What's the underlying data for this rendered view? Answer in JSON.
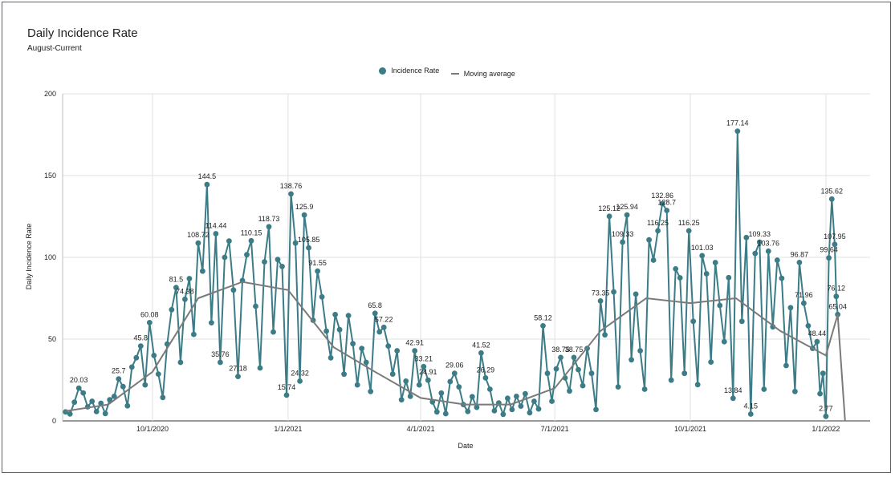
{
  "chart_data": {
    "type": "line",
    "title": "Daily Incidence Rate",
    "subtitle": "August-Current",
    "xlabel": "Date",
    "ylabel": "Daily Incidence Rate",
    "ylim": [
      0,
      200
    ],
    "yticks": [
      0,
      50,
      100,
      150,
      200
    ],
    "xlim": [
      "2020-08-01",
      "2022-01-31"
    ],
    "xticks": [
      {
        "date": "2020-10-01",
        "label": "10/1/2020"
      },
      {
        "date": "2021-01-01",
        "label": "1/1/2021"
      },
      {
        "date": "2021-04-01",
        "label": "4/1/2021"
      },
      {
        "date": "2021-07-01",
        "label": "7/1/2021"
      },
      {
        "date": "2021-10-01",
        "label": "10/1/2021"
      },
      {
        "date": "2022-01-01",
        "label": "1/1/2022"
      }
    ],
    "grid": true,
    "legend_position": "top-center",
    "series": [
      {
        "name": "Incidence Rate",
        "color": "#3b7c87",
        "marker": "circle",
        "points": [
          [
            "2020-08-03",
            5.5
          ],
          [
            "2020-08-06",
            4.2
          ],
          [
            "2020-08-09",
            11.4
          ],
          [
            "2020-08-12",
            20.03
          ],
          [
            "2020-08-15",
            17.1
          ],
          [
            "2020-08-18",
            8.6
          ],
          [
            "2020-08-21",
            12.0
          ],
          [
            "2020-08-24",
            5.7
          ],
          [
            "2020-08-27",
            10.8
          ],
          [
            "2020-08-30",
            4.5
          ],
          [
            "2020-09-02",
            12.9
          ],
          [
            "2020-09-05",
            15.0
          ],
          [
            "2020-09-08",
            25.7
          ],
          [
            "2020-09-11",
            21.0
          ],
          [
            "2020-09-14",
            9.2
          ],
          [
            "2020-09-17",
            32.9
          ],
          [
            "2020-09-20",
            38.6
          ],
          [
            "2020-09-23",
            45.8
          ],
          [
            "2020-09-26",
            22.0
          ],
          [
            "2020-09-29",
            60.08
          ],
          [
            "2020-10-02",
            40.0
          ],
          [
            "2020-10-05",
            28.61
          ],
          [
            "2020-10-08",
            14.3
          ],
          [
            "2020-10-11",
            47.0
          ],
          [
            "2020-10-14",
            68.0
          ],
          [
            "2020-10-17",
            81.5
          ],
          [
            "2020-10-20",
            35.8
          ],
          [
            "2020-10-23",
            74.38
          ],
          [
            "2020-10-26",
            87.0
          ],
          [
            "2020-10-29",
            52.9
          ],
          [
            "2020-11-01",
            108.72
          ],
          [
            "2020-11-04",
            91.55
          ],
          [
            "2020-11-07",
            144.5
          ],
          [
            "2020-11-10",
            60.0
          ],
          [
            "2020-11-13",
            114.44
          ],
          [
            "2020-11-16",
            35.76
          ],
          [
            "2020-11-19",
            100.0
          ],
          [
            "2020-11-22",
            110.0
          ],
          [
            "2020-11-25",
            80.0
          ],
          [
            "2020-11-28",
            27.18
          ],
          [
            "2020-12-01",
            85.83
          ],
          [
            "2020-12-04",
            101.6
          ],
          [
            "2020-12-07",
            110.15
          ],
          [
            "2020-12-10",
            70.09
          ],
          [
            "2020-12-13",
            32.34
          ],
          [
            "2020-12-16",
            97.27
          ],
          [
            "2020-12-19",
            118.73
          ],
          [
            "2020-12-22",
            54.36
          ],
          [
            "2020-12-25",
            98.7
          ],
          [
            "2020-12-28",
            94.41
          ],
          [
            "2020-12-31",
            15.74
          ],
          [
            "2021-01-03",
            138.76
          ],
          [
            "2021-01-06",
            108.72
          ],
          [
            "2021-01-09",
            24.32
          ],
          [
            "2021-01-12",
            125.9
          ],
          [
            "2021-01-15",
            105.85
          ],
          [
            "2021-01-18",
            61.51
          ],
          [
            "2021-01-21",
            91.55
          ],
          [
            "2021-01-24",
            75.82
          ],
          [
            "2021-01-27",
            54.9
          ],
          [
            "2021-01-30",
            38.6
          ],
          [
            "2021-02-02",
            65.0
          ],
          [
            "2021-02-05",
            55.8
          ],
          [
            "2021-02-08",
            28.6
          ],
          [
            "2021-02-11",
            64.4
          ],
          [
            "2021-02-14",
            47.2
          ],
          [
            "2021-02-17",
            22.0
          ],
          [
            "2021-02-20",
            44.3
          ],
          [
            "2021-02-23",
            35.76
          ],
          [
            "2021-02-26",
            18.0
          ],
          [
            "2021-03-01",
            65.8
          ],
          [
            "2021-03-04",
            54.4
          ],
          [
            "2021-03-07",
            57.22
          ],
          [
            "2021-03-10",
            45.78
          ],
          [
            "2021-03-13",
            28.61
          ],
          [
            "2021-03-16",
            42.91
          ],
          [
            "2021-03-19",
            12.9
          ],
          [
            "2021-03-22",
            24.32
          ],
          [
            "2021-03-25",
            15.0
          ],
          [
            "2021-03-28",
            42.91
          ],
          [
            "2021-03-31",
            22.0
          ],
          [
            "2021-04-03",
            33.21
          ],
          [
            "2021-04-06",
            24.91
          ],
          [
            "2021-04-09",
            11.6
          ],
          [
            "2021-04-12",
            5.5
          ],
          [
            "2021-04-15",
            17.0
          ],
          [
            "2021-04-18",
            4.4
          ],
          [
            "2021-04-21",
            24.0
          ],
          [
            "2021-04-24",
            29.06
          ],
          [
            "2021-04-27",
            20.76
          ],
          [
            "2021-04-30",
            10.0
          ],
          [
            "2021-05-03",
            5.8
          ],
          [
            "2021-05-06",
            14.8
          ],
          [
            "2021-05-09",
            8.3
          ],
          [
            "2021-05-12",
            41.52
          ],
          [
            "2021-05-15",
            26.29
          ],
          [
            "2021-05-18",
            19.37
          ],
          [
            "2021-05-21",
            6.2
          ],
          [
            "2021-05-24",
            11.0
          ],
          [
            "2021-05-27",
            4.0
          ],
          [
            "2021-05-30",
            13.8
          ],
          [
            "2021-06-02",
            6.9
          ],
          [
            "2021-06-05",
            15.0
          ],
          [
            "2021-06-08",
            9.0
          ],
          [
            "2021-06-11",
            16.6
          ],
          [
            "2021-06-14",
            5.0
          ],
          [
            "2021-06-17",
            12.0
          ],
          [
            "2021-06-20",
            7.3
          ],
          [
            "2021-06-23",
            58.12
          ],
          [
            "2021-06-26",
            29.06
          ],
          [
            "2021-06-29",
            12.0
          ],
          [
            "2021-07-02",
            31.8
          ],
          [
            "2021-07-05",
            38.75
          ],
          [
            "2021-07-08",
            26.29
          ],
          [
            "2021-07-11",
            18.3
          ],
          [
            "2021-07-14",
            38.75
          ],
          [
            "2021-07-17",
            31.3
          ],
          [
            "2021-07-20",
            21.5
          ],
          [
            "2021-07-23",
            44.29
          ],
          [
            "2021-07-26",
            29.06
          ],
          [
            "2021-07-29",
            6.92
          ],
          [
            "2021-08-01",
            73.35
          ],
          [
            "2021-08-04",
            52.59
          ],
          [
            "2021-08-07",
            125.12
          ],
          [
            "2021-08-10",
            78.88
          ],
          [
            "2021-08-13",
            20.76
          ],
          [
            "2021-08-16",
            109.33
          ],
          [
            "2021-08-19",
            125.94
          ],
          [
            "2021-08-22",
            37.37
          ],
          [
            "2021-08-25",
            77.5
          ],
          [
            "2021-08-28",
            42.9
          ],
          [
            "2021-08-31",
            19.37
          ],
          [
            "2021-09-03",
            110.7
          ],
          [
            "2021-09-06",
            98.26
          ],
          [
            "2021-09-09",
            116.25
          ],
          [
            "2021-09-12",
            132.86
          ],
          [
            "2021-09-15",
            128.7
          ],
          [
            "2021-09-18",
            24.91
          ],
          [
            "2021-09-21",
            92.92
          ],
          [
            "2021-09-24",
            87.5
          ],
          [
            "2021-09-27",
            29.06
          ],
          [
            "2021-09-30",
            116.25
          ],
          [
            "2021-10-03",
            60.89
          ],
          [
            "2021-10-06",
            22.14
          ],
          [
            "2021-10-09",
            101.03
          ],
          [
            "2021-10-12",
            89.95
          ],
          [
            "2021-10-15",
            35.98
          ],
          [
            "2021-10-18",
            96.8
          ],
          [
            "2021-10-21",
            70.58
          ],
          [
            "2021-10-24",
            48.44
          ],
          [
            "2021-10-27",
            87.6
          ],
          [
            "2021-10-30",
            13.84
          ],
          [
            "2021-11-02",
            177.14
          ],
          [
            "2021-11-05",
            60.89
          ],
          [
            "2021-11-08",
            112.1
          ],
          [
            "2021-11-11",
            4.15
          ],
          [
            "2021-11-14",
            102.41
          ],
          [
            "2021-11-17",
            109.33
          ],
          [
            "2021-11-20",
            19.37
          ],
          [
            "2021-11-23",
            103.76
          ],
          [
            "2021-11-26",
            57.5
          ],
          [
            "2021-11-29",
            98.26
          ],
          [
            "2021-12-02",
            87.19
          ],
          [
            "2021-12-05",
            33.83
          ],
          [
            "2021-12-08",
            69.2
          ],
          [
            "2021-12-11",
            17.99
          ],
          [
            "2021-12-14",
            96.87
          ],
          [
            "2021-12-17",
            71.96
          ],
          [
            "2021-12-20",
            58.12
          ],
          [
            "2021-12-23",
            44.29
          ],
          [
            "2021-12-26",
            48.44
          ],
          [
            "2021-12-28",
            16.61
          ],
          [
            "2021-12-30",
            29.06
          ],
          [
            "2022-01-01",
            2.77
          ],
          [
            "2022-01-03",
            99.64
          ],
          [
            "2022-01-05",
            135.62
          ],
          [
            "2022-01-07",
            107.95
          ],
          [
            "2022-01-08",
            76.12
          ],
          [
            "2022-01-09",
            65.04
          ]
        ]
      },
      {
        "name": "Moving average",
        "color": "#7a7a7a",
        "marker": "none",
        "points": [
          [
            "2020-08-03",
            6.0
          ],
          [
            "2020-09-01",
            10.0
          ],
          [
            "2020-10-01",
            30.0
          ],
          [
            "2020-11-01",
            75.0
          ],
          [
            "2020-12-01",
            85.0
          ],
          [
            "2021-01-01",
            80.0
          ],
          [
            "2021-02-01",
            45.0
          ],
          [
            "2021-03-01",
            30.0
          ],
          [
            "2021-04-01",
            14.0
          ],
          [
            "2021-05-01",
            10.0
          ],
          [
            "2021-06-01",
            10.0
          ],
          [
            "2021-07-01",
            20.0
          ],
          [
            "2021-08-01",
            55.0
          ],
          [
            "2021-09-01",
            75.0
          ],
          [
            "2021-10-01",
            72.0
          ],
          [
            "2021-11-01",
            75.0
          ],
          [
            "2021-12-01",
            55.0
          ],
          [
            "2022-01-01",
            40.0
          ],
          [
            "2022-01-09",
            65.0
          ],
          [
            "2022-01-14",
            0.0
          ]
        ]
      }
    ],
    "data_labels": [
      {
        "date": "2020-11-07",
        "value": 144.5,
        "text": "144.5"
      },
      {
        "date": "2020-11-13",
        "value": 114.44,
        "text": "114.44"
      },
      {
        "date": "2020-11-01",
        "value": 108.72,
        "text": "108.72"
      },
      {
        "date": "2020-10-17",
        "value": 81.5,
        "text": "81.5"
      },
      {
        "date": "2020-10-23",
        "value": 74.38,
        "text": "74.38"
      },
      {
        "date": "2020-09-29",
        "value": 60.08,
        "text": "60.08"
      },
      {
        "date": "2020-09-23",
        "value": 45.8,
        "text": "45.8"
      },
      {
        "date": "2020-09-08",
        "value": 25.7,
        "text": "25.7"
      },
      {
        "date": "2020-08-12",
        "value": 20.03,
        "text": "20.03"
      },
      {
        "date": "2020-11-16",
        "value": 35.76,
        "text": "35.76"
      },
      {
        "date": "2020-11-28",
        "value": 27.18,
        "text": "27.18"
      },
      {
        "date": "2020-12-07",
        "value": 110.15,
        "text": "110.15"
      },
      {
        "date": "2020-12-19",
        "value": 118.73,
        "text": "118.73"
      },
      {
        "date": "2020-12-31",
        "value": 15.74,
        "text": "15.74"
      },
      {
        "date": "2021-01-03",
        "value": 138.76,
        "text": "138.76"
      },
      {
        "date": "2021-01-12",
        "value": 125.9,
        "text": "125.9"
      },
      {
        "date": "2021-01-15",
        "value": 105.85,
        "text": "105.85"
      },
      {
        "date": "2021-01-09",
        "value": 24.32,
        "text": "24.32"
      },
      {
        "date": "2021-01-21",
        "value": 91.55,
        "text": "91.55"
      },
      {
        "date": "2021-03-01",
        "value": 65.8,
        "text": "65.8"
      },
      {
        "date": "2021-03-07",
        "value": 57.22,
        "text": "57.22"
      },
      {
        "date": "2021-03-28",
        "value": 42.91,
        "text": "42.91"
      },
      {
        "date": "2021-04-03",
        "value": 33.21,
        "text": "33.21"
      },
      {
        "date": "2021-04-06",
        "value": 24.91,
        "text": "24.91"
      },
      {
        "date": "2021-04-24",
        "value": 29.06,
        "text": "29.06"
      },
      {
        "date": "2021-05-12",
        "value": 41.52,
        "text": "41.52"
      },
      {
        "date": "2021-05-15",
        "value": 26.29,
        "text": "26.29"
      },
      {
        "date": "2021-06-23",
        "value": 58.12,
        "text": "58.12"
      },
      {
        "date": "2021-07-05",
        "value": 38.75,
        "text": "38.75"
      },
      {
        "date": "2021-07-14",
        "value": 38.75,
        "text": "38.75"
      },
      {
        "date": "2021-08-01",
        "value": 73.35,
        "text": "73.35"
      },
      {
        "date": "2021-08-07",
        "value": 125.12,
        "text": "125.12"
      },
      {
        "date": "2021-08-19",
        "value": 125.94,
        "text": "125.94"
      },
      {
        "date": "2021-08-16",
        "value": 109.33,
        "text": "109.33"
      },
      {
        "date": "2021-09-09",
        "value": 116.25,
        "text": "116.25"
      },
      {
        "date": "2021-09-12",
        "value": 132.86,
        "text": "132.86"
      },
      {
        "date": "2021-09-15",
        "value": 128.7,
        "text": "128.7"
      },
      {
        "date": "2021-09-30",
        "value": 116.25,
        "text": "116.25"
      },
      {
        "date": "2021-10-09",
        "value": 101.03,
        "text": "101.03"
      },
      {
        "date": "2021-11-02",
        "value": 177.14,
        "text": "177.14"
      },
      {
        "date": "2021-11-11",
        "value": 4.15,
        "text": "4.15"
      },
      {
        "date": "2021-10-30",
        "value": 13.84,
        "text": "13.84"
      },
      {
        "date": "2021-11-17",
        "value": 109.33,
        "text": "109.33"
      },
      {
        "date": "2021-11-23",
        "value": 103.76,
        "text": "103.76"
      },
      {
        "date": "2021-12-14",
        "value": 96.87,
        "text": "96.87"
      },
      {
        "date": "2021-12-17",
        "value": 71.96,
        "text": "71.96"
      },
      {
        "date": "2021-12-26",
        "value": 48.44,
        "text": "48.44"
      },
      {
        "date": "2022-01-01",
        "value": 2.77,
        "text": "2.77"
      },
      {
        "date": "2022-01-03",
        "value": 99.64,
        "text": "99.64"
      },
      {
        "date": "2022-01-05",
        "value": 135.62,
        "text": "135.62"
      },
      {
        "date": "2022-01-07",
        "value": 107.95,
        "text": "107.95"
      },
      {
        "date": "2022-01-08",
        "value": 76.12,
        "text": "76.12"
      },
      {
        "date": "2022-01-09",
        "value": 65.04,
        "text": "65.04"
      }
    ]
  }
}
